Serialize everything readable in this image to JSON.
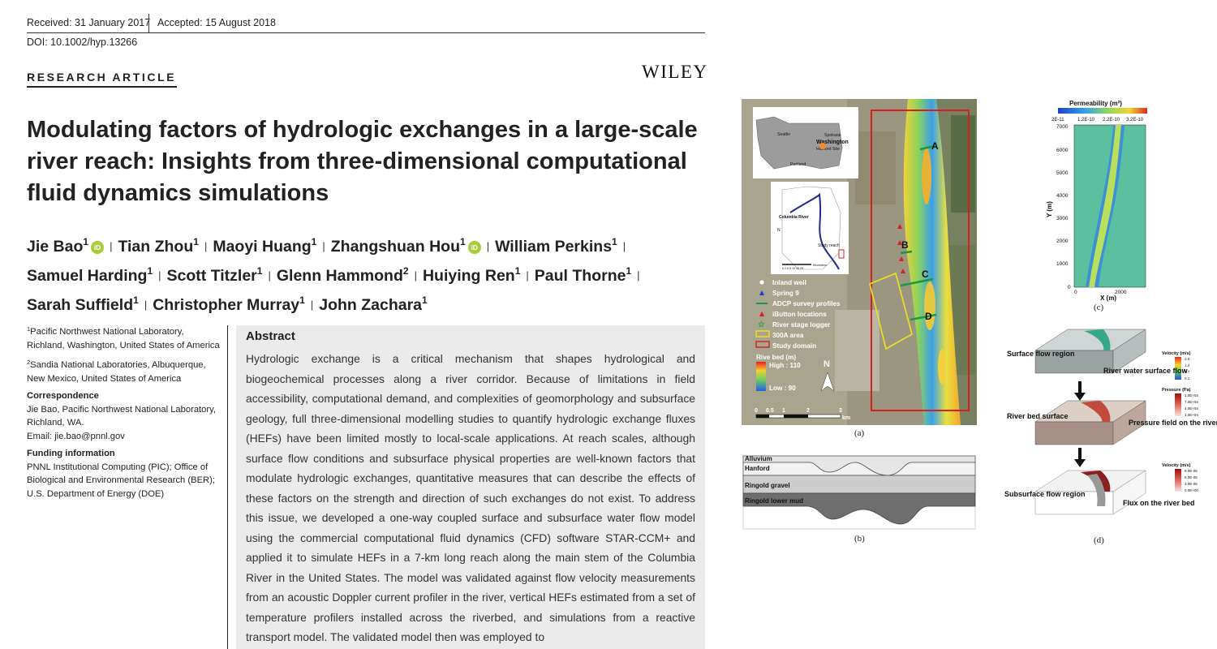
{
  "header": {
    "received": "Received: 31 January 2017",
    "accepted": "Accepted: 15 August 2018",
    "doi": "DOI: 10.1002/hyp.13266",
    "article_type": "RESEARCH ARTICLE",
    "publisher": "WILEY"
  },
  "title": "Modulating factors of hydrologic exchanges in a large-scale river reach: Insights from three-dimensional computational fluid dynamics simulations",
  "authors": [
    {
      "name": "Jie Bao",
      "aff": "1",
      "orcid": true
    },
    {
      "name": "Tian Zhou",
      "aff": "1",
      "orcid": false
    },
    {
      "name": "Maoyi Huang",
      "aff": "1",
      "orcid": false
    },
    {
      "name": "Zhangshuan Hou",
      "aff": "1",
      "orcid": true
    },
    {
      "name": "William Perkins",
      "aff": "1",
      "orcid": false
    },
    {
      "name": "Samuel Harding",
      "aff": "1",
      "orcid": false
    },
    {
      "name": "Scott Titzler",
      "aff": "1",
      "orcid": false
    },
    {
      "name": "Glenn Hammond",
      "aff": "2",
      "orcid": false
    },
    {
      "name": "Huiying Ren",
      "aff": "1",
      "orcid": false
    },
    {
      "name": "Paul Thorne",
      "aff": "1",
      "orcid": false
    },
    {
      "name": "Sarah Suffield",
      "aff": "1",
      "orcid": false
    },
    {
      "name": "Christopher Murray",
      "aff": "1",
      "orcid": false
    },
    {
      "name": "John Zachara",
      "aff": "1",
      "orcid": false
    }
  ],
  "orcid_label": "iD",
  "affiliations": [
    {
      "num": "1",
      "text": "Pacific Northwest National Laboratory, Richland, Washington, United States of America"
    },
    {
      "num": "2",
      "text": "Sandia National Laboratories, Albuquerque, New Mexico, United States of America"
    }
  ],
  "correspondence": {
    "heading": "Correspondence",
    "lines": [
      "Jie Bao, Pacific Northwest National Laboratory, Richland, WA.",
      "Email: jie.bao@pnnl.gov"
    ]
  },
  "funding": {
    "heading": "Funding information",
    "text": "PNNL Institutional Computing (PIC); Office of Biological and Environmental Research (BER); U.S. Department of Energy (DOE)"
  },
  "abstract": {
    "heading": "Abstract",
    "text": "Hydrologic exchange is a critical mechanism that shapes hydrological and biogeochemical processes along a river corridor. Because of limitations in field accessibility, computational demand, and complexities of geomorphology and subsurface geology, full three-dimensional modelling studies to quantify hydrologic exchange fluxes (HEFs) have been limited mostly to local-scale applications. At reach scales, although surface flow conditions and subsurface physical properties are well-known factors that modulate hydrologic exchanges, quantitative measures that can describe the effects of these factors on the strength and direction of such exchanges do not exist. To address this issue, we developed a one-way coupled surface and subsurface water flow model using the commercial computational fluid dynamics (CFD) software STAR-CCM+ and applied it to simulate HEFs in a 7-km long reach along the main stem of the Columbia River in the United States. The model was validated against flow velocity measurements from an acoustic Doppler current profiler in the river, vertical HEFs estimated from a set of temperature profilers installed across the riverbed, and simulations from a reactive transport model. The validated model then was employed to"
  },
  "figure": {
    "panel_a": {
      "caption": "(a)",
      "inset_labels": [
        "Seattle",
        "Spokane",
        "Washington",
        "Hanford Site",
        "Portland"
      ],
      "map2_labels": [
        "Columbia River",
        "N",
        "Study reach",
        "Kilometers"
      ],
      "map2_scale": "0 2.5 5   10   15   20",
      "reach_labels": [
        "A",
        "B",
        "C",
        "D"
      ],
      "legend": [
        "Inland well",
        "Spring 9",
        "ADCP survey profiles",
        "iButton locations",
        "River stage logger",
        "300A area",
        "Study domain"
      ],
      "riverbed_title": "Rive bed (m)",
      "riverbed_high": "High : 110",
      "riverbed_low": "Low : 90",
      "north": "N",
      "scale_ticks": [
        "0",
        "0.5",
        "1",
        "2",
        "3"
      ],
      "scale_unit": "km"
    },
    "panel_b": {
      "caption": "(b)",
      "layers": [
        "Alluvium",
        "Hanford",
        "Ringold gravel",
        "Ringold lower mud"
      ]
    },
    "panel_c": {
      "caption": "(c)",
      "colorbar_title": "Permeability (m²)",
      "colorbar_ticks": [
        "2E-11",
        "1.2E-10",
        "2.2E-10",
        "3.2E-10"
      ],
      "ylabel": "Y (m)",
      "xlabel": "X (m)",
      "yticks": [
        "7000",
        "6000",
        "5000",
        "4000",
        "3000",
        "2000",
        "1000",
        "0"
      ],
      "xticks": [
        "0",
        "2000"
      ]
    },
    "panel_d": {
      "caption": "(d)",
      "labels": [
        "Surface flow region",
        "River water surface flow",
        "River bed surface",
        "Pressure field on the river bed",
        "Subsurface flow region",
        "Flux on the river bed"
      ],
      "cb1_title": "Velocity (m/s)",
      "cb1_ticks": [
        "2.0",
        "1.4",
        "0.7",
        "0.1"
      ],
      "cb2_title": "Pressure (Pa)",
      "cb2_ticks": [
        "1.0E+04",
        "7.0E+04",
        "4.0E+04",
        "1.0E+04"
      ],
      "cb3_title": "Velocity (m/s)",
      "cb3_ticks": [
        "9.0E-06",
        "6.0E-06",
        "3.0E-06",
        "0.0E+00"
      ]
    }
  }
}
